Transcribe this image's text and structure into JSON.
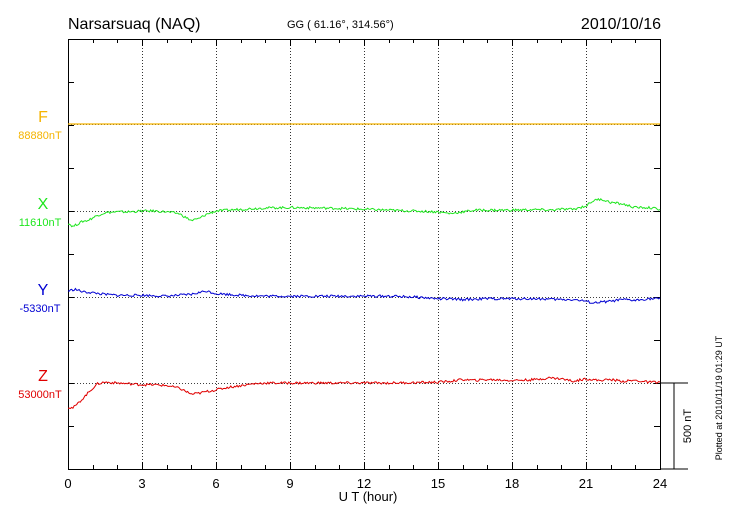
{
  "header": {
    "station": "Narsarsuaq (NAQ)",
    "coords": "GG ( 61.16°, 314.56°)",
    "date": "2010/10/16"
  },
  "side_note": "Plotted at 2010/11/19 01:29 UT",
  "scale_bar": {
    "label": "500 nT",
    "value_nT": 500
  },
  "colors": {
    "F": "#f5b400",
    "X": "#1ee61e",
    "Y": "#0000d2",
    "Z": "#e00000",
    "axis": "#000000",
    "grid": "#000000"
  },
  "chart_data": {
    "type": "line",
    "xlabel": "U T (hour)",
    "xlim": [
      0,
      24
    ],
    "xticks": [
      0,
      3,
      6,
      9,
      12,
      15,
      18,
      21,
      24
    ],
    "xtick_labels": [
      "0",
      "3",
      "6",
      "9",
      "12",
      "15",
      "18",
      "21",
      "24"
    ],
    "grid": true,
    "series": [
      {
        "name": "F",
        "baseline_label": "88880nT",
        "baseline_nT": 88880,
        "x": [
          0,
          24
        ],
        "dev_nT": [
          0,
          0
        ]
      },
      {
        "name": "X",
        "baseline_label": "11610nT",
        "baseline_nT": 11610,
        "x": [
          0,
          0.2,
          0.4,
          0.6,
          0.8,
          1.0,
          1.2,
          1.5,
          2.0,
          2.5,
          3.0,
          3.5,
          4.0,
          4.5,
          4.8,
          5.0,
          5.3,
          5.6,
          6.0,
          6.5,
          7.0,
          8.0,
          9.0,
          10,
          11,
          12,
          13,
          14,
          15,
          15.5,
          16,
          16.5,
          17,
          18,
          19,
          19.5,
          20,
          20.5,
          21,
          21.3,
          21.6,
          22,
          22.5,
          23,
          23.5,
          24
        ],
        "dev_nT": [
          -70,
          -90,
          -75,
          -60,
          -55,
          -40,
          -25,
          -10,
          -5,
          -5,
          0,
          0,
          -5,
          -15,
          -40,
          -55,
          -45,
          -20,
          0,
          5,
          10,
          18,
          20,
          18,
          15,
          10,
          5,
          0,
          -5,
          -15,
          -5,
          5,
          5,
          5,
          8,
          5,
          10,
          10,
          30,
          60,
          70,
          50,
          40,
          20,
          20,
          10
        ]
      },
      {
        "name": "Y",
        "baseline_label": "-5330nT",
        "baseline_nT": -5330,
        "x": [
          0,
          0.3,
          0.6,
          1.0,
          1.5,
          2.0,
          3.0,
          4.0,
          4.5,
          5.0,
          5.3,
          5.6,
          6.0,
          6.5,
          7.0,
          8.0,
          10,
          12,
          13,
          14,
          15,
          16,
          17,
          18,
          19,
          20,
          20.5,
          21,
          21.3,
          21.6,
          22,
          22.5,
          23,
          23.5,
          24
        ],
        "dev_nT": [
          35,
          45,
          30,
          25,
          15,
          10,
          10,
          5,
          10,
          15,
          25,
          35,
          20,
          15,
          10,
          5,
          5,
          5,
          5,
          0,
          -10,
          -15,
          -10,
          -10,
          -10,
          -15,
          -15,
          -25,
          -35,
          -30,
          -25,
          -15,
          -20,
          -10,
          -10
        ]
      },
      {
        "name": "Z",
        "baseline_label": "53000nT",
        "baseline_nT": 53000,
        "x": [
          0,
          0.2,
          0.4,
          0.6,
          0.8,
          1.0,
          1.2,
          1.5,
          2.0,
          2.5,
          3.0,
          3.5,
          4.0,
          4.5,
          4.8,
          5.0,
          5.3,
          5.6,
          6.0,
          6.5,
          7.0,
          7.5,
          8.0,
          9.0,
          10,
          11,
          12,
          13,
          14,
          15,
          15.5,
          16,
          16.5,
          17,
          18,
          19,
          19.5,
          20,
          20.5,
          21,
          21.5,
          22,
          22.5,
          23,
          23.5,
          24
        ],
        "dev_nT": [
          -140,
          -145,
          -120,
          -90,
          -60,
          -30,
          -5,
          5,
          0,
          -5,
          -10,
          -10,
          -15,
          -30,
          -50,
          -65,
          -60,
          -50,
          -40,
          -25,
          -15,
          -5,
          0,
          0,
          0,
          0,
          0,
          0,
          2,
          5,
          10,
          20,
          15,
          20,
          15,
          20,
          30,
          25,
          10,
          25,
          15,
          20,
          10,
          15,
          5,
          5
        ]
      }
    ]
  }
}
